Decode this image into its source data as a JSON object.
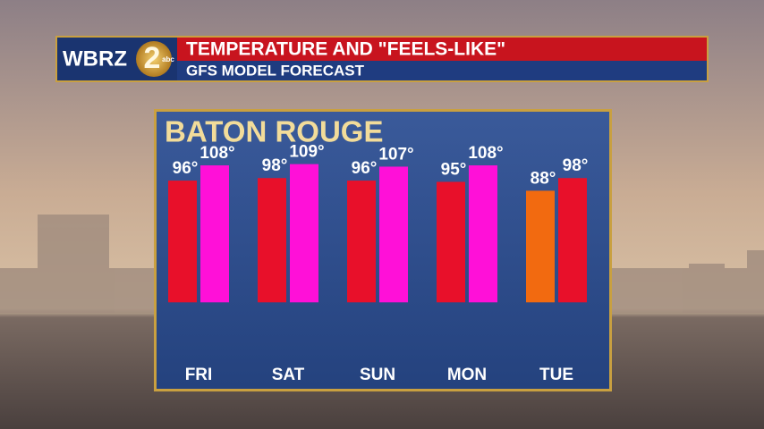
{
  "header": {
    "logo": "WBRZ",
    "channel": "2",
    "network": "abc",
    "title": "TEMPERATURE AND \"FEELS-LIKE\"",
    "subtitle": "GFS MODEL FORECAST"
  },
  "chart_data": {
    "type": "bar",
    "title": "BATON ROUGE",
    "categories": [
      "FRI",
      "SAT",
      "SUN",
      "MON",
      "TUE"
    ],
    "series": [
      {
        "values": [
          96,
          98,
          96,
          95,
          88
        ],
        "value_labels": [
          "96°",
          "98°",
          "96°",
          "95°",
          "88°"
        ],
        "colors": [
          "#e8102a",
          "#e8102a",
          "#e8102a",
          "#e8102a",
          "#f26a10"
        ]
      },
      {
        "values": [
          108,
          109,
          107,
          108,
          98
        ],
        "value_labels": [
          "108°",
          "109°",
          "107°",
          "108°",
          "98°"
        ],
        "colors": [
          "#ff10d8",
          "#ff10d8",
          "#ff10d8",
          "#ff10d8",
          "#e8102a"
        ]
      }
    ],
    "ylim": [
      -47,
      120
    ]
  }
}
